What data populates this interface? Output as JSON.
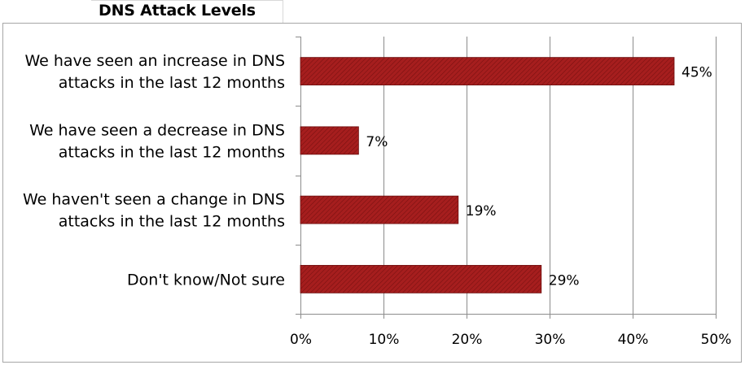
{
  "chart_data": {
    "type": "bar",
    "orientation": "horizontal",
    "title": "DNS Attack Levels",
    "categories": [
      [
        "We have seen an increase in DNS",
        "attacks in the last 12 months"
      ],
      [
        "We have seen a decrease in DNS",
        "attacks in the last 12 months"
      ],
      [
        "We haven't seen a change in DNS",
        "attacks in the last 12 months"
      ],
      [
        "Don't know/Not sure"
      ]
    ],
    "values": [
      45,
      7,
      19,
      29
    ],
    "value_labels": [
      "45%",
      "7%",
      "19%",
      "29%"
    ],
    "xlim": [
      0,
      50
    ],
    "x_ticks": [
      0,
      10,
      20,
      30,
      40,
      50
    ],
    "x_tick_labels": [
      "0%",
      "10%",
      "20%",
      "30%",
      "40%",
      "50%"
    ],
    "grid": "vertical",
    "legend": "none",
    "bar_color": "#a01c1c",
    "bar_hatch_color": "#7a1010"
  }
}
